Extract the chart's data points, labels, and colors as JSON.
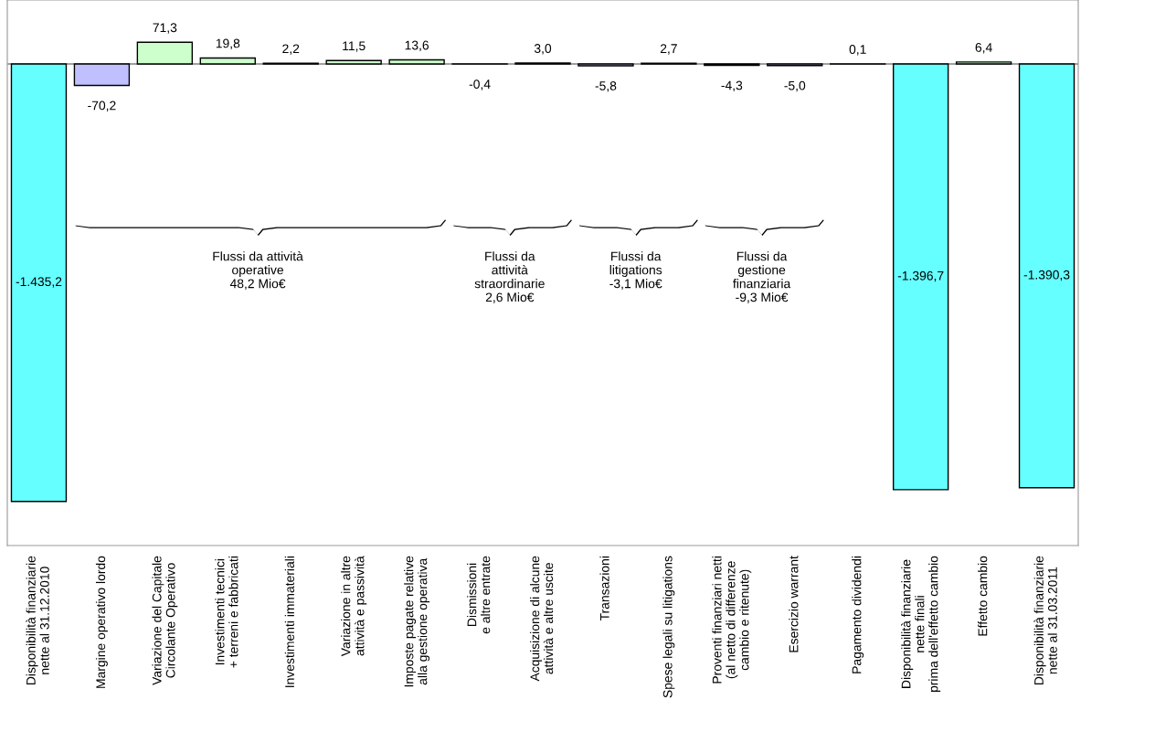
{
  "chart_data": {
    "type": "bar",
    "categories": [
      "Disponibilità finanziarie\nnette al 31.12.2010",
      "Margine operativo lordo",
      "Variazione del Capitale\nCircolante Operativo",
      "Investimenti tecnici\n+ terreni e fabbricati",
      "Investimenti immateriali",
      "Variazione in altre\nattività e passività",
      "Imposte pagate relative\nalla gestione operativa",
      "Dismissioni\ne altre entrate",
      "Acquisizione di alcune\nattività e altre uscite",
      "Transazioni",
      "Spese legali su litigations",
      "Proventi finanziari netti\n(al netto di differenze\ncambio e ritenute)",
      "Esercizio warrant",
      "Pagamento dividendi",
      "Disponibilità finanziarie\nnette finali\nprima dell'effetto cambio",
      "Effetto cambio",
      "Disponibilità finanziarie\nnette al 31.03.2011"
    ],
    "values": [
      -1435.2,
      -70.2,
      71.3,
      19.8,
      2.2,
      11.5,
      13.6,
      -0.4,
      3.0,
      -5.8,
      2.7,
      -4.3,
      -5.0,
      0.1,
      -1396.7,
      6.4,
      -1390.3
    ],
    "value_labels": [
      "-1.435,2",
      "-70,2",
      "71,3",
      "19,8",
      "2,2",
      "11,5",
      "13,6",
      "-0,4",
      "3,0",
      "-5,8",
      "2,7",
      "-4,3",
      "-5,0",
      "0,1",
      "-1.396,7",
      "6,4",
      "-1.390,3"
    ],
    "colors": [
      "#66ffff",
      "#c0c0ff",
      "#ccffcc",
      "#ccffcc",
      "#ccffcc",
      "#ccffcc",
      "#ccffcc",
      "#c0c0ff",
      "#ccffcc",
      "#c0c0ff",
      "#ccffcc",
      "#c0c0ff",
      "#c0c0ff",
      "#ccffcc",
      "#66ffff",
      "#ccffcc",
      "#66ffff"
    ],
    "ylim": [
      -1580,
      210
    ],
    "annotations": [
      "Flussi da attività\noperative\n48,2 Mio€",
      "Flussi da\nattività\nstraordinarie\n2,6 Mio€",
      "Flussi da\nlitigations\n-3,1 Mio€",
      "Flussi da\ngestione\nfinanziaria\n-9,3 Mio€"
    ],
    "tick_labels": "x",
    "grid": false,
    "legend": false
  }
}
